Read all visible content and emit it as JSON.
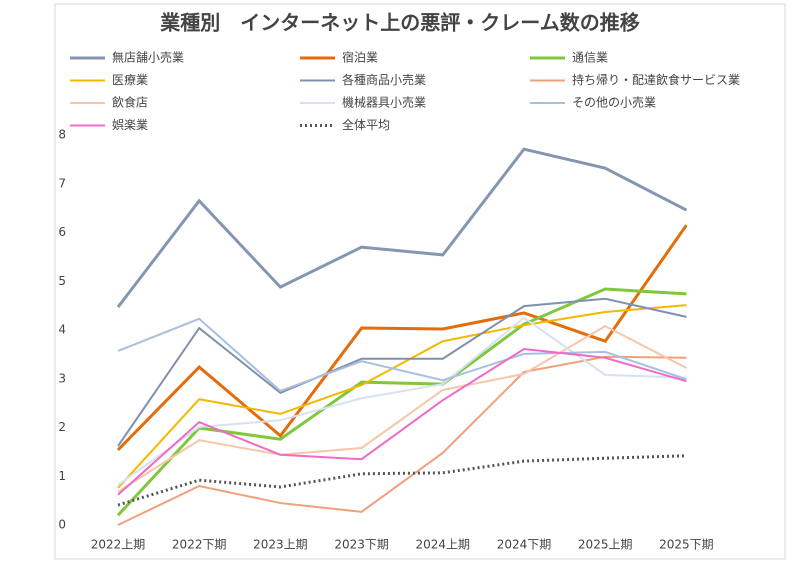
{
  "chart_data": {
    "type": "line",
    "title": "業種別　インターネット上の悪評・クレーム数の推移",
    "categories": [
      "2022上期",
      "2022下期",
      "2023上期",
      "2023下期",
      "2024上期",
      "2024下期",
      "2025上期",
      "2025下期"
    ],
    "series": [
      {
        "name": "無店舗小売業",
        "color": "#8496b0",
        "width": 3,
        "values": [
          4.47,
          6.65,
          4.88,
          5.7,
          5.54,
          7.71,
          7.32,
          6.46
        ]
      },
      {
        "name": "宿泊業",
        "color": "#e46c0a",
        "width": 3,
        "values": [
          1.54,
          3.24,
          1.83,
          4.04,
          4.02,
          4.35,
          3.77,
          6.15
        ]
      },
      {
        "name": "通信業",
        "color": "#7fc73b",
        "width": 3,
        "values": [
          0.2,
          1.99,
          1.76,
          2.93,
          2.89,
          4.12,
          4.84,
          4.74
        ]
      },
      {
        "name": "医療業",
        "color": "#f5b800",
        "width": 2,
        "values": [
          0.76,
          2.58,
          2.28,
          2.87,
          3.77,
          4.1,
          4.37,
          4.51
        ]
      },
      {
        "name": "各種商品小売業",
        "color": "#8091ab",
        "width": 2,
        "values": [
          1.62,
          4.04,
          2.71,
          3.41,
          3.41,
          4.49,
          4.64,
          4.27
        ]
      },
      {
        "name": "持ち帰り・配達飲食サービス業",
        "color": "#f0a07a",
        "width": 2,
        "values": [
          0,
          0.8,
          0.45,
          0.27,
          1.48,
          3.14,
          3.45,
          3.43
        ]
      },
      {
        "name": "飲食店",
        "color": "#f6c6a8",
        "width": 2,
        "values": [
          0.68,
          1.74,
          1.44,
          1.58,
          2.77,
          3.1,
          4.08,
          3.22
        ]
      },
      {
        "name": "機械器具小売業",
        "color": "#d6e2f0",
        "width": 2,
        "values": [
          0.82,
          2.01,
          2.15,
          2.6,
          2.89,
          4.25,
          3.08,
          3.02
        ]
      },
      {
        "name": "その他の小売業",
        "color": "#a8bfe0",
        "width": 2,
        "values": [
          3.57,
          4.23,
          2.75,
          3.36,
          2.97,
          3.51,
          3.55,
          2.99
        ]
      },
      {
        "name": "娯楽業",
        "color": "#f06ac6",
        "width": 2,
        "values": [
          0.62,
          2.11,
          1.44,
          1.35,
          2.56,
          3.61,
          3.43,
          2.95
        ]
      },
      {
        "name": "全体平均",
        "color": "#555555",
        "width": 3,
        "dash": true,
        "values": [
          0.41,
          0.92,
          0.78,
          1.05,
          1.07,
          1.31,
          1.37,
          1.42
        ]
      }
    ],
    "ylim": [
      0,
      8
    ],
    "yticks": [
      0,
      1,
      2,
      3,
      4,
      5,
      6,
      7,
      8
    ]
  }
}
